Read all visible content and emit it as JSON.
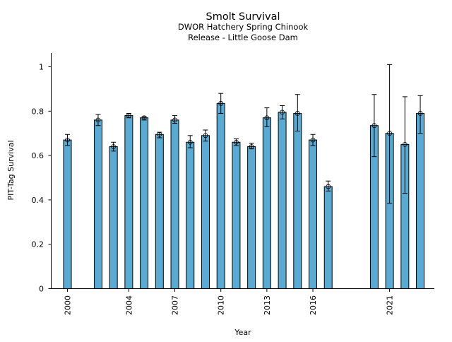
{
  "chart_data": {
    "type": "bar",
    "title": "Smolt Survival",
    "subtitle_lines": [
      "DWOR Hatchery Spring Chinook",
      "Release - Little Goose Dam"
    ],
    "xlabel": "Year",
    "ylabel": "PIT-Tag Survival",
    "ylim": [
      0,
      1.06
    ],
    "xlim": [
      1999.3,
      2024.0
    ],
    "yticks": [
      0,
      0.2,
      0.4,
      0.6,
      0.8,
      1
    ],
    "ytick_labels": [
      "0",
      "0.2",
      "0.4",
      "0.6",
      "0.8",
      "1"
    ],
    "xticks": [
      2000,
      2004,
      2007,
      2010,
      2013,
      2016,
      2021
    ],
    "xtick_labels": [
      "2000",
      "2004",
      "2007",
      "2010",
      "2013",
      "2016",
      "2021"
    ],
    "bar_color": "#5aabd4",
    "grid": false,
    "legend": "none",
    "data": [
      {
        "year": 2000,
        "value": 0.67,
        "lower": 0.645,
        "upper": 0.695
      },
      {
        "year": 2002,
        "value": 0.76,
        "lower": 0.735,
        "upper": 0.785
      },
      {
        "year": 2003,
        "value": 0.64,
        "lower": 0.62,
        "upper": 0.66
      },
      {
        "year": 2004,
        "value": 0.78,
        "lower": 0.77,
        "upper": 0.79
      },
      {
        "year": 2005,
        "value": 0.77,
        "lower": 0.76,
        "upper": 0.775
      },
      {
        "year": 2006,
        "value": 0.695,
        "lower": 0.68,
        "upper": 0.705
      },
      {
        "year": 2007,
        "value": 0.76,
        "lower": 0.745,
        "upper": 0.78
      },
      {
        "year": 2008,
        "value": 0.66,
        "lower": 0.635,
        "upper": 0.69
      },
      {
        "year": 2009,
        "value": 0.69,
        "lower": 0.665,
        "upper": 0.715
      },
      {
        "year": 2010,
        "value": 0.835,
        "lower": 0.79,
        "upper": 0.88
      },
      {
        "year": 2011,
        "value": 0.66,
        "lower": 0.645,
        "upper": 0.675
      },
      {
        "year": 2012,
        "value": 0.64,
        "lower": 0.63,
        "upper": 0.655
      },
      {
        "year": 2013,
        "value": 0.77,
        "lower": 0.73,
        "upper": 0.815
      },
      {
        "year": 2014,
        "value": 0.795,
        "lower": 0.765,
        "upper": 0.825
      },
      {
        "year": 2015,
        "value": 0.79,
        "lower": 0.71,
        "upper": 0.875
      },
      {
        "year": 2016,
        "value": 0.67,
        "lower": 0.645,
        "upper": 0.695
      },
      {
        "year": 2017,
        "value": 0.46,
        "lower": 0.44,
        "upper": 0.485
      },
      {
        "year": 2020,
        "value": 0.735,
        "lower": 0.595,
        "upper": 0.875
      },
      {
        "year": 2021,
        "value": 0.7,
        "lower": 0.385,
        "upper": 1.01
      },
      {
        "year": 2022,
        "value": 0.65,
        "lower": 0.43,
        "upper": 0.865
      },
      {
        "year": 2023,
        "value": 0.79,
        "lower": 0.7,
        "upper": 0.87
      }
    ]
  }
}
